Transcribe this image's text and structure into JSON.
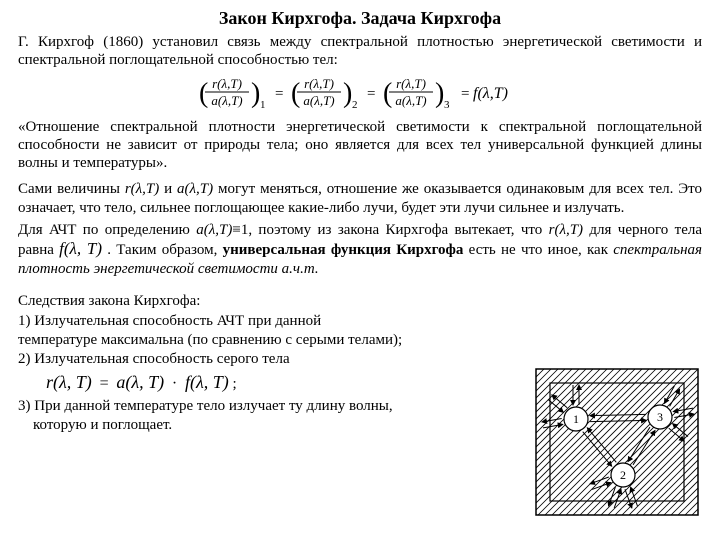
{
  "title": "Закон Кирхгофа. Задача Кирхгофа",
  "p1": "Г. Кирхгоф (1860) установил связь между спектральной плотностью энергетической светимости и спектральной поглощательной способностью тел:",
  "formula_ratio": {
    "num": "r(λ,T)",
    "den": "a(λ,T)",
    "rhs": "f(λ,T)",
    "bracket_color": "#000000",
    "num_color": "#000000",
    "text_fontsize": 13
  },
  "p2": "«Отношение спектральной плотности энергетической светимости к спектральной поглощательной способности не зависит от природы тела; оно является для всех тел универсальной функцией длины волны и температуры».",
  "p3_a": "Сами величины ",
  "p3_b": "r(λ,T)",
  "p3_c": " и ",
  "p3_d": "a(λ,T)",
  "p3_e": " могут меняться, отношение же оказывается одинаковым для всех тел. Это означает, что тело, сильнее поглощающее какие-либо лучи, будет эти лучи сильнее и излучать.",
  "p4_a": "Для АЧТ по определению ",
  "p4_b": "a(λ,T)",
  "p4_c": "≡1, поэтому из закона Кирхгофа вытекает, что ",
  "p4_d": "r(λ,T)",
  "p4_e": " для черного тела равна ",
  "p4_f": "f(λ, T)",
  "p4_g": " . Таким образом, ",
  "p4_h": "универсальная функция Кирхгофа",
  "p4_i": " есть не что иное, как ",
  "p4_j": "спектральная плотность энергетической светимости а.ч.т.",
  "cons_title": "Следствия закона Кирхгофа:",
  "c1_a": "1)   Излучательная способность АЧТ при данной",
  "c1_b": "температуре максимальна (по сравнению с серыми телами);",
  "c2_a": "2) Излучательная способность серого тела",
  "c2_formula": {
    "lhs": "r(λ, T)",
    "eq": "=",
    "mid": "a(λ, T)",
    "dot": "·",
    "rhs": "f(λ, T)",
    "semi": " ;"
  },
  "c3_a": "3) При данной температуре тело излучает ту длину волны,",
  "c3_b": "    которую и поглощает.",
  "diagram": {
    "width": 170,
    "height": 154,
    "outer_stroke": "#000000",
    "hatch_color": "#000000",
    "circle_stroke": "#000000",
    "circle_fill": "#ffffff",
    "arrow_color": "#000000",
    "labels": [
      "1",
      "2",
      "3"
    ],
    "label_fontsize": 12
  }
}
